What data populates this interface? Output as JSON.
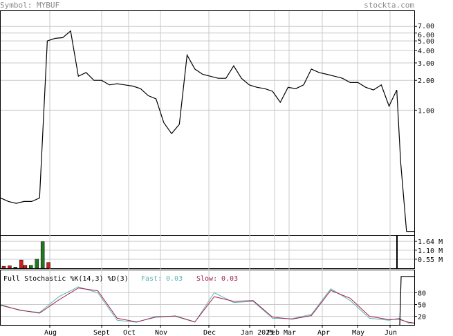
{
  "header": {
    "symbol_label": "Symbol: MYBUF",
    "site": "stockta.com"
  },
  "colors": {
    "price_line": "#000000",
    "grid": "#c8c8c8",
    "volume_up": "#1f7a1f",
    "volume_down": "#cc1f1f",
    "fast_line": "#5fb3b3",
    "slow_line": "#a0204a",
    "header_text": "#8a8a8a"
  },
  "chart_data": [
    {
      "type": "line",
      "scale": "log",
      "ylim": [
        0.055,
        10
      ],
      "y_ticks": [
        7.0,
        6.0,
        5.0,
        4.0,
        3.0,
        2.0,
        1.0
      ],
      "y_tick_labels": [
        "7.00",
        "6.00",
        "5.00",
        "4.00",
        "3.00",
        "2.00",
        "1.00"
      ],
      "x_labels": [
        "Aug",
        "Sept",
        "Oct",
        "Nov",
        "Dec",
        "Jan 2025",
        "Feb",
        "Mar",
        "Apr",
        "May",
        "Jun"
      ],
      "x_index": [
        0,
        4,
        8,
        12,
        16,
        20,
        24,
        28,
        32,
        36,
        40,
        44,
        48,
        52,
        56,
        60,
        64,
        68,
        72,
        76,
        80,
        84,
        88,
        92,
        96,
        100,
        104,
        108,
        112,
        116,
        120,
        124,
        128,
        132,
        136,
        140,
        144,
        148,
        152,
        156,
        160,
        164,
        168,
        172,
        176,
        180,
        184,
        188,
        192,
        196,
        200,
        204,
        206,
        209,
        211,
        213
      ],
      "values": [
        0.13,
        0.12,
        0.115,
        0.12,
        0.12,
        0.13,
        5.0,
        5.3,
        5.4,
        6.3,
        2.2,
        2.4,
        2.0,
        2.0,
        1.8,
        1.85,
        1.8,
        1.75,
        1.65,
        1.4,
        1.3,
        0.75,
        0.58,
        0.72,
        3.6,
        2.6,
        2.3,
        2.2,
        2.1,
        2.1,
        2.8,
        2.1,
        1.8,
        1.7,
        1.65,
        1.55,
        1.2,
        1.7,
        1.65,
        1.8,
        2.6,
        2.4,
        2.3,
        2.2,
        2.1,
        1.9,
        1.9,
        1.7,
        1.6,
        1.8,
        1.1,
        1.6,
        0.3,
        0.06,
        0.06,
        0.06
      ]
    },
    {
      "type": "bar",
      "y_tick_labels": [
        "1.64 M",
        "1.10 M",
        "0.55 M"
      ],
      "ylim": [
        0,
        1.98
      ],
      "x_index": [
        0,
        3,
        6,
        9,
        11,
        14,
        17,
        20,
        23
      ],
      "values": [
        0.12,
        0.15,
        0.07,
        0.5,
        0.18,
        0.18,
        0.55,
        1.62,
        0.35
      ],
      "up": [
        false,
        false,
        true,
        false,
        false,
        true,
        true,
        true,
        false
      ]
    },
    {
      "type": "line",
      "title": "Full Stochastic %K(14,3) %D(3)",
      "fast_label": "Fast:",
      "fast_value": "0.03",
      "slow_label": "Slow:",
      "slow_value": "0.03",
      "ylim": [
        0,
        100
      ],
      "y_tick_labels": [
        "80",
        "50",
        "20"
      ],
      "x_index": [
        0,
        10,
        20,
        30,
        40,
        50,
        60,
        70,
        80,
        90,
        100,
        110,
        120,
        130,
        140,
        150,
        160,
        170,
        180,
        190,
        200,
        205,
        210,
        213
      ],
      "series": [
        {
          "name": "Fast",
          "values": [
            50,
            35,
            30,
            70,
            95,
            80,
            10,
            5,
            20,
            20,
            5,
            80,
            55,
            58,
            15,
            14,
            25,
            90,
            60,
            15,
            10,
            15,
            3,
            3
          ]
        },
        {
          "name": "Slow",
          "values": [
            48,
            36,
            28,
            62,
            92,
            85,
            15,
            6,
            18,
            21,
            6,
            70,
            58,
            60,
            18,
            13,
            22,
            86,
            66,
            20,
            12,
            13,
            5,
            3
          ]
        }
      ]
    }
  ]
}
